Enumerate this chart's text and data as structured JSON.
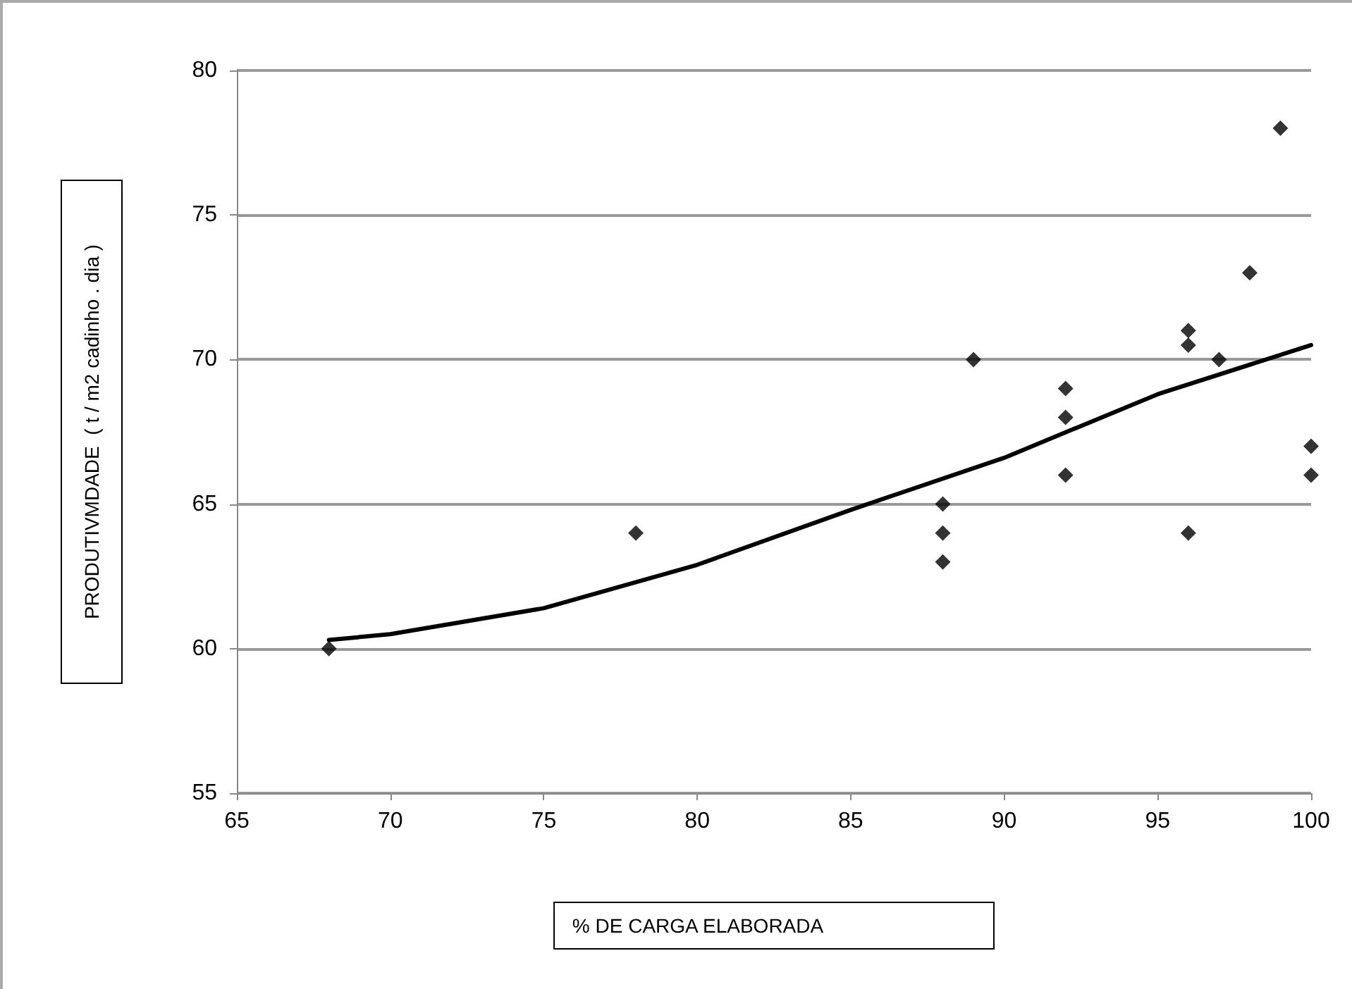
{
  "chart_data": {
    "type": "scatter",
    "xlabel": "% DE CARGA ELABORADA",
    "ylabel": "PRODUTIVMDADE  ( t / m2 cadinho . dia )",
    "series": [
      {
        "type": "scatter",
        "color": "#000000",
        "marker": "diamond",
        "x": [
          68,
          78,
          88,
          88,
          88,
          89,
          92,
          92,
          92,
          96,
          96,
          96,
          97,
          98,
          99,
          100,
          100
        ],
        "values": [
          60,
          64,
          65,
          64,
          63,
          70,
          69,
          68,
          66,
          71,
          70.5,
          64,
          70,
          73,
          78,
          67,
          66
        ]
      },
      {
        "type": "line",
        "color": "#000000",
        "marker": "none",
        "line_style": "solid",
        "x": [
          68,
          70,
          75,
          80,
          85,
          90,
          95,
          100
        ],
        "values": [
          60.3,
          60.5,
          61.4,
          62.9,
          64.8,
          66.6,
          68.8,
          70.5
        ]
      }
    ],
    "xlim": [
      65,
      100
    ],
    "xticks": [
      65,
      70,
      75,
      80,
      85,
      90,
      95,
      100
    ],
    "ylim": [
      55,
      80
    ],
    "yticks": [
      55,
      60,
      65,
      70,
      75,
      80
    ],
    "grid": "y"
  }
}
